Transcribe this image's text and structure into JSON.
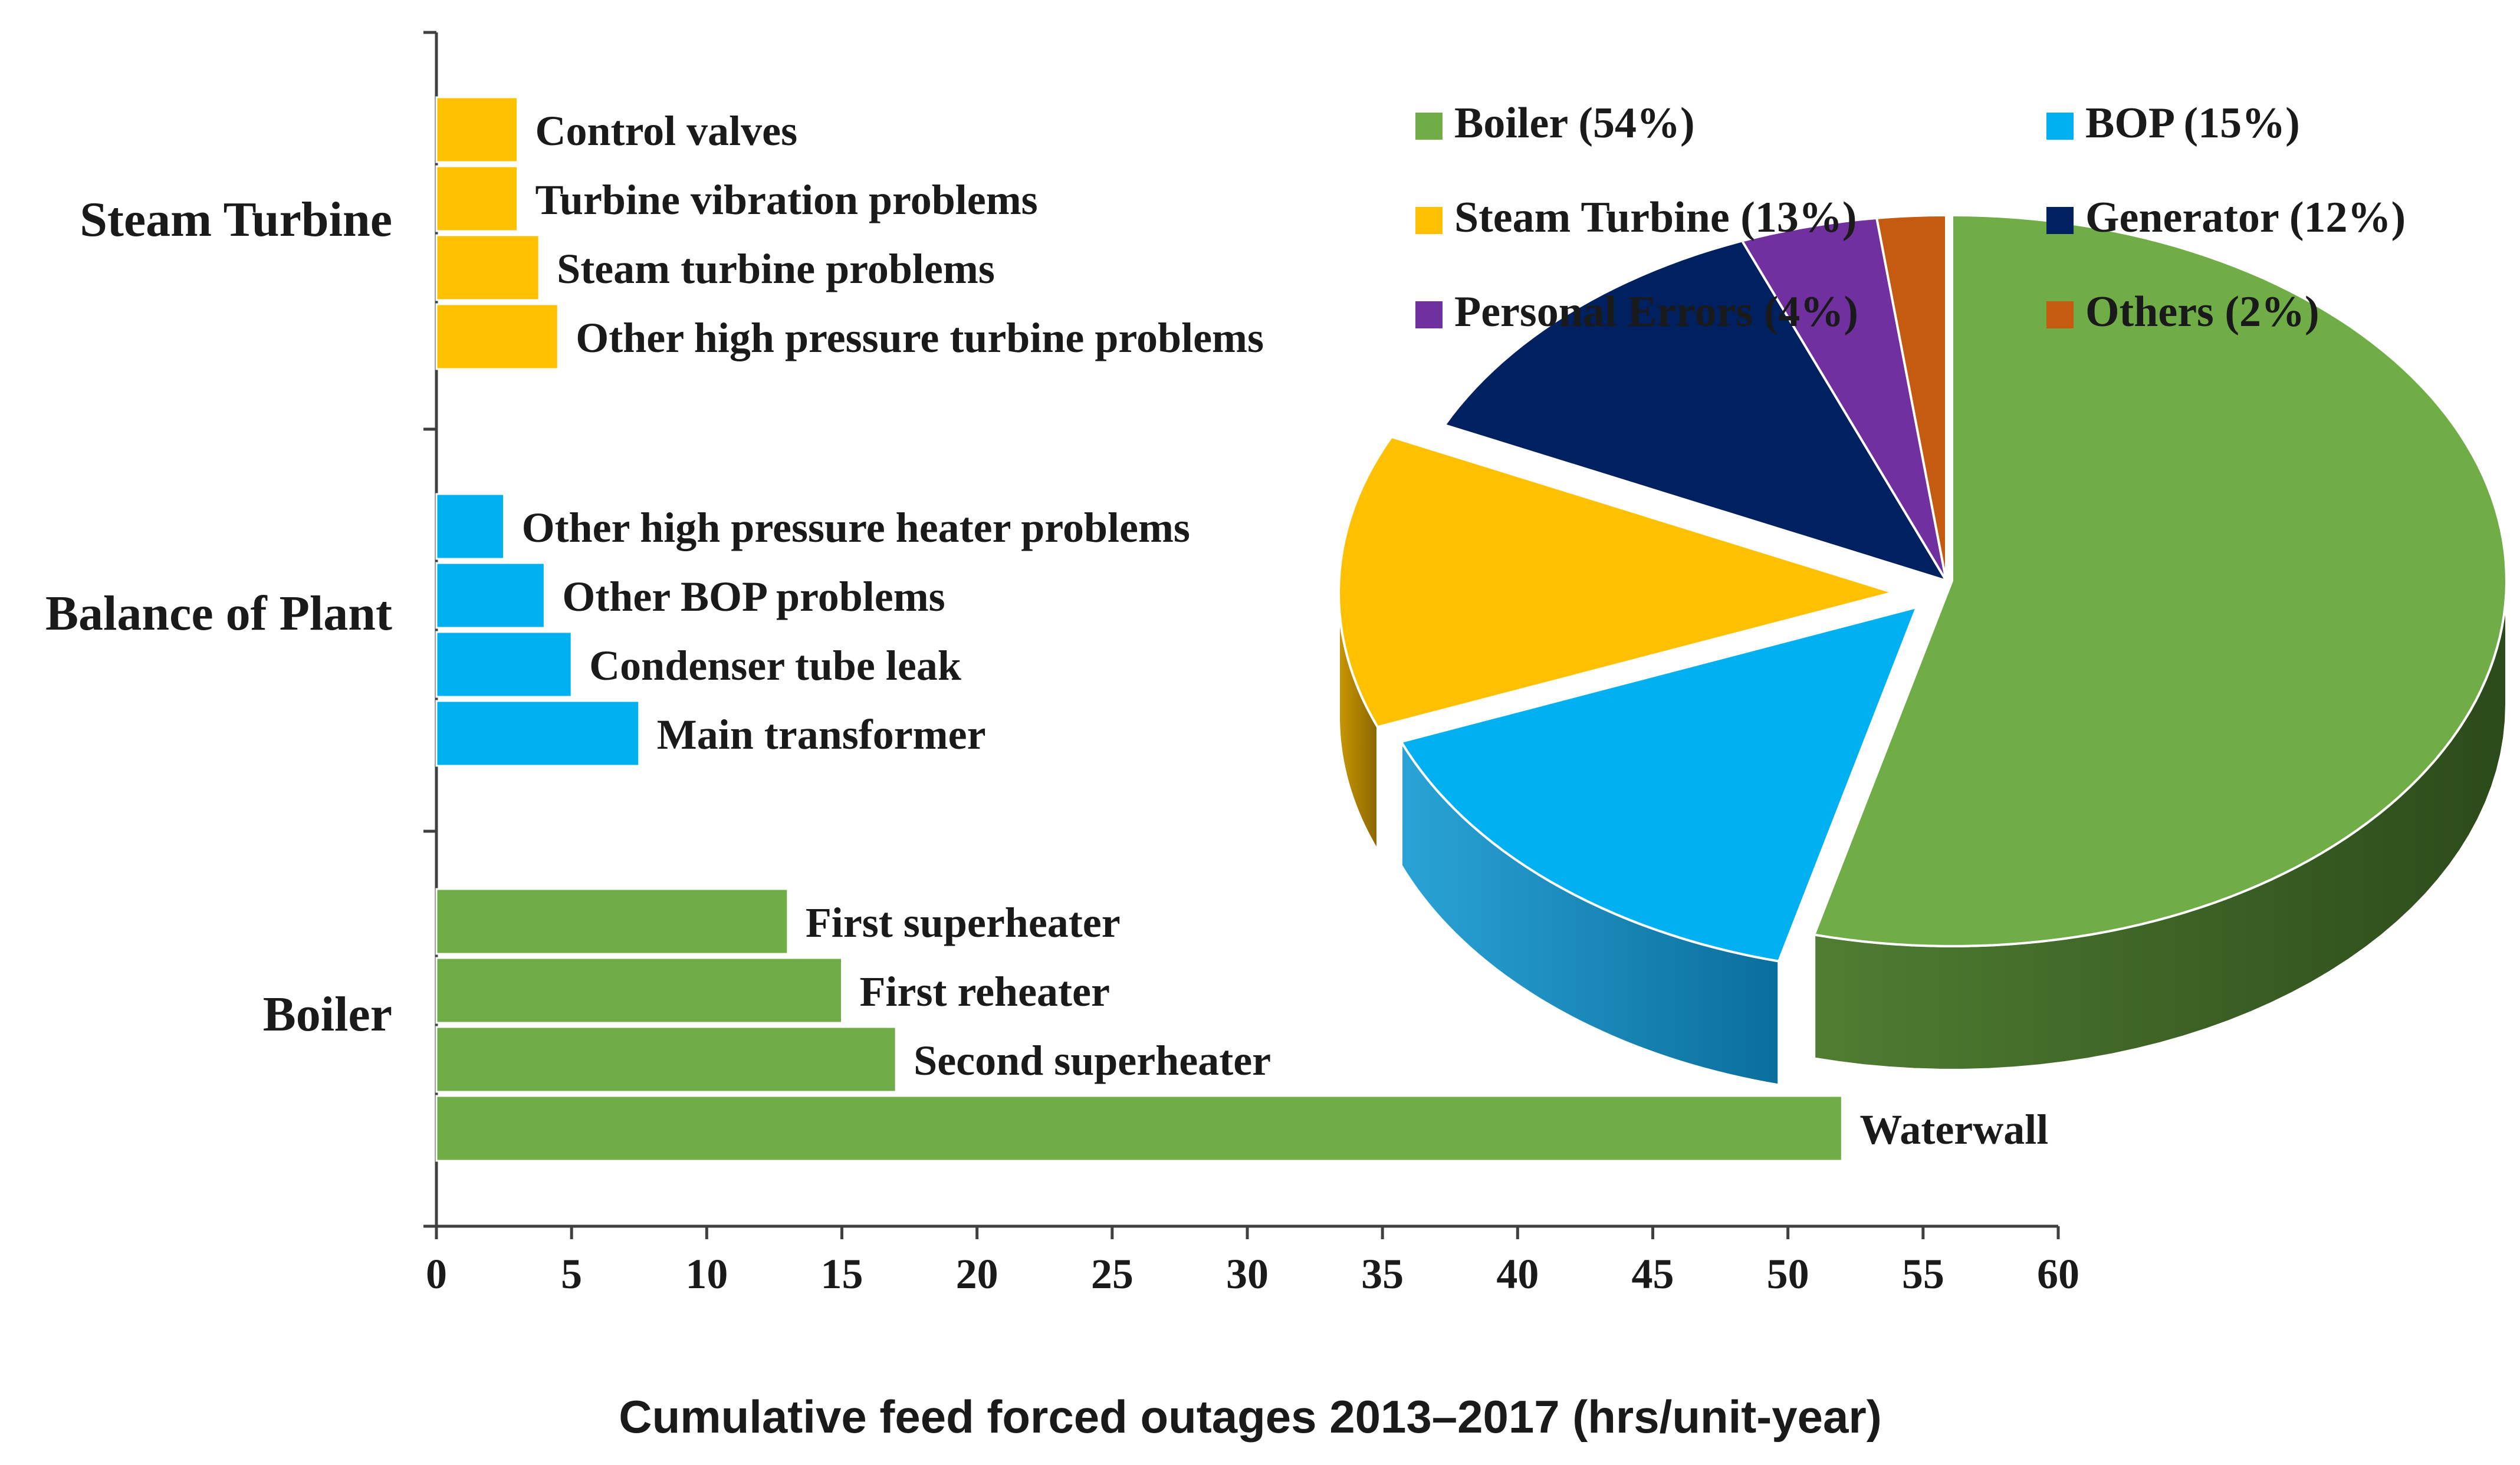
{
  "chart_data": [
    {
      "type": "bar",
      "orientation": "horizontal",
      "xlabel": "Cumulative feed forced outages 2013–2017 (hrs/unit-year)",
      "xlim": [
        0,
        60
      ],
      "xticks": [
        "0",
        "5",
        "10",
        "15",
        "20",
        "25",
        "30",
        "35",
        "40",
        "45",
        "50",
        "55",
        "60"
      ],
      "groups": [
        {
          "name": "Steam Turbine",
          "color": "#FFC000",
          "bars": [
            {
              "label": "Control valves",
              "value": 3
            },
            {
              "label": "Turbine vibration problems",
              "value": 3
            },
            {
              "label": "Steam turbine problems",
              "value": 3.8
            },
            {
              "label": "Other high pressure turbine problems",
              "value": 4.5
            }
          ]
        },
        {
          "name": "Balance of Plant",
          "color": "#00B0F0",
          "bars": [
            {
              "label": "Other high pressure heater problems",
              "value": 2.5
            },
            {
              "label": "Other BOP problems",
              "value": 4
            },
            {
              "label": "Condenser tube leak",
              "value": 5
            },
            {
              "label": "Main transformer",
              "value": 7.5
            }
          ]
        },
        {
          "name": "Boiler",
          "color": "#70AD47",
          "bars": [
            {
              "label": "First superheater",
              "value": 13
            },
            {
              "label": "First reheater",
              "value": 15
            },
            {
              "label": "Second superheater",
              "value": 17
            },
            {
              "label": "Waterwall",
              "value": 52
            }
          ]
        }
      ]
    },
    {
      "type": "pie",
      "style": "3d-exploded",
      "legend_position": "top-right",
      "slices": [
        {
          "name": "Boiler",
          "legend": "Boiler (54%)",
          "value": 54,
          "color": "#70AD47"
        },
        {
          "name": "BOP",
          "legend": "BOP (15%)",
          "value": 15,
          "color": "#00B0F0"
        },
        {
          "name": "Steam Turbine",
          "legend": "Steam Turbine (13%)",
          "value": 13,
          "color": "#FFC000"
        },
        {
          "name": "Generator",
          "legend": "Generator (12%)",
          "value": 12,
          "color": "#002060"
        },
        {
          "name": "Personal Errors",
          "legend": "Personal Errors (4%)",
          "value": 4,
          "color": "#7030A0"
        },
        {
          "name": "Others",
          "legend": "Others (2%)",
          "value": 2,
          "color": "#C55A11"
        }
      ]
    }
  ]
}
